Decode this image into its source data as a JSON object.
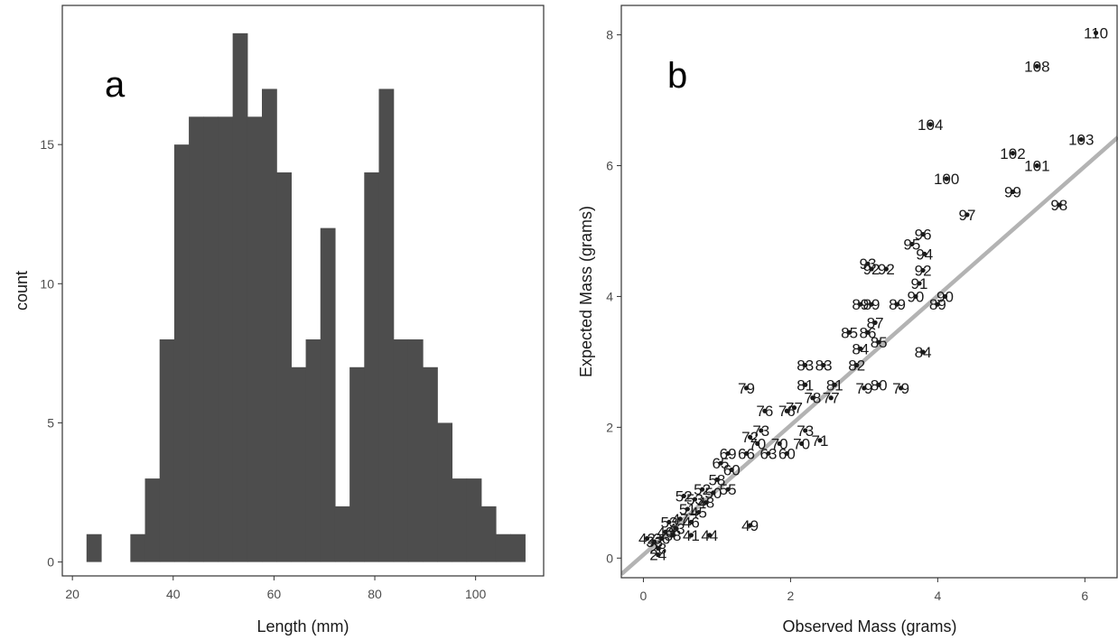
{
  "panels": {
    "a": {
      "letter": "a"
    },
    "b": {
      "letter": "b"
    }
  },
  "colors": {
    "bars": "#4d4d4d",
    "points": "#1a1a1a",
    "line": "#b3b3b3",
    "frame": "#333333"
  },
  "chart_data": [
    {
      "type": "bar",
      "subtype": "histogram",
      "panel_label": "a",
      "xlabel": "Length (mm)",
      "ylabel": "count",
      "xlim": [
        18,
        113.5
      ],
      "ylim": [
        -0.5,
        20
      ],
      "xticks": [
        20,
        40,
        60,
        80,
        100
      ],
      "yticks": [
        0,
        5,
        10,
        15
      ],
      "bin_width": 2.9,
      "bins": [
        {
          "x0": 22.8,
          "count": 1
        },
        {
          "x0": 25.7,
          "count": 0
        },
        {
          "x0": 28.6,
          "count": 0
        },
        {
          "x0": 31.5,
          "count": 1
        },
        {
          "x0": 34.4,
          "count": 3
        },
        {
          "x0": 37.3,
          "count": 8
        },
        {
          "x0": 40.2,
          "count": 15
        },
        {
          "x0": 43.1,
          "count": 16
        },
        {
          "x0": 46.0,
          "count": 16
        },
        {
          "x0": 48.9,
          "count": 16
        },
        {
          "x0": 51.8,
          "count": 19
        },
        {
          "x0": 54.7,
          "count": 16
        },
        {
          "x0": 57.6,
          "count": 17
        },
        {
          "x0": 60.5,
          "count": 14
        },
        {
          "x0": 63.4,
          "count": 7
        },
        {
          "x0": 66.3,
          "count": 8
        },
        {
          "x0": 69.2,
          "count": 12
        },
        {
          "x0": 72.1,
          "count": 2
        },
        {
          "x0": 75.0,
          "count": 7
        },
        {
          "x0": 77.9,
          "count": 14
        },
        {
          "x0": 80.8,
          "count": 17
        },
        {
          "x0": 83.7,
          "count": 8
        },
        {
          "x0": 86.6,
          "count": 8
        },
        {
          "x0": 89.5,
          "count": 7
        },
        {
          "x0": 92.4,
          "count": 5
        },
        {
          "x0": 95.3,
          "count": 3
        },
        {
          "x0": 98.2,
          "count": 3
        },
        {
          "x0": 101.1,
          "count": 2
        },
        {
          "x0": 104.0,
          "count": 1
        },
        {
          "x0": 106.9,
          "count": 1
        }
      ],
      "grid": false
    },
    {
      "type": "scatter",
      "panel_label": "b",
      "xlabel": "Observed Mass (grams)",
      "ylabel": "Expected Mass (grams)",
      "xlim": [
        -0.3,
        6.45
      ],
      "ylim": [
        -0.3,
        8.45
      ],
      "xticks": [
        0,
        2,
        4,
        6
      ],
      "yticks": [
        0,
        2,
        4,
        6,
        8
      ],
      "grid": false,
      "reference_line": {
        "type": "fit",
        "slope": 0.99,
        "intercept": 0.05
      },
      "points": [
        {
          "x": 6.15,
          "y": 8.03,
          "label": "110"
        },
        {
          "x": 5.35,
          "y": 7.52,
          "label": "108"
        },
        {
          "x": 3.9,
          "y": 6.63,
          "label": "104"
        },
        {
          "x": 5.95,
          "y": 6.4,
          "label": "103"
        },
        {
          "x": 5.02,
          "y": 6.19,
          "label": "102"
        },
        {
          "x": 5.35,
          "y": 6.0,
          "label": "101"
        },
        {
          "x": 4.12,
          "y": 5.8,
          "label": "100"
        },
        {
          "x": 5.02,
          "y": 5.6,
          "label": "99"
        },
        {
          "x": 5.65,
          "y": 5.4,
          "label": "98"
        },
        {
          "x": 4.4,
          "y": 5.25,
          "label": "97"
        },
        {
          "x": 3.8,
          "y": 4.95,
          "label": "96"
        },
        {
          "x": 3.65,
          "y": 4.8,
          "label": "95"
        },
        {
          "x": 3.82,
          "y": 4.65,
          "label": "94"
        },
        {
          "x": 3.05,
          "y": 4.5,
          "label": "93"
        },
        {
          "x": 3.1,
          "y": 4.42,
          "label": "92"
        },
        {
          "x": 3.3,
          "y": 4.42,
          "label": "92"
        },
        {
          "x": 3.8,
          "y": 4.4,
          "label": "92"
        },
        {
          "x": 3.75,
          "y": 4.2,
          "label": "91"
        },
        {
          "x": 3.7,
          "y": 4.0,
          "label": "90"
        },
        {
          "x": 4.1,
          "y": 4.0,
          "label": "90"
        },
        {
          "x": 2.95,
          "y": 3.88,
          "label": "89"
        },
        {
          "x": 3.1,
          "y": 3.88,
          "label": "89"
        },
        {
          "x": 3.45,
          "y": 3.88,
          "label": "89"
        },
        {
          "x": 4.0,
          "y": 3.88,
          "label": "89"
        },
        {
          "x": 3.15,
          "y": 3.6,
          "label": "87"
        },
        {
          "x": 3.05,
          "y": 3.45,
          "label": "86"
        },
        {
          "x": 2.8,
          "y": 3.45,
          "label": "85"
        },
        {
          "x": 3.2,
          "y": 3.3,
          "label": "85"
        },
        {
          "x": 2.95,
          "y": 3.2,
          "label": "84"
        },
        {
          "x": 3.8,
          "y": 3.15,
          "label": "84"
        },
        {
          "x": 2.2,
          "y": 2.95,
          "label": "83"
        },
        {
          "x": 2.45,
          "y": 2.95,
          "label": "83"
        },
        {
          "x": 2.9,
          "y": 2.95,
          "label": "82"
        },
        {
          "x": 2.2,
          "y": 2.65,
          "label": "81"
        },
        {
          "x": 2.6,
          "y": 2.65,
          "label": "81"
        },
        {
          "x": 3.2,
          "y": 2.65,
          "label": "80"
        },
        {
          "x": 3.5,
          "y": 2.6,
          "label": "79"
        },
        {
          "x": 1.4,
          "y": 2.6,
          "label": "79"
        },
        {
          "x": 3.0,
          "y": 2.6,
          "label": "79"
        },
        {
          "x": 2.3,
          "y": 2.45,
          "label": "78"
        },
        {
          "x": 2.55,
          "y": 2.45,
          "label": "77"
        },
        {
          "x": 2.05,
          "y": 2.3,
          "label": "77"
        },
        {
          "x": 1.65,
          "y": 2.25,
          "label": "76"
        },
        {
          "x": 1.95,
          "y": 2.25,
          "label": "76"
        },
        {
          "x": 1.6,
          "y": 1.95,
          "label": "73"
        },
        {
          "x": 2.2,
          "y": 1.95,
          "label": "73"
        },
        {
          "x": 1.45,
          "y": 1.85,
          "label": "72"
        },
        {
          "x": 2.4,
          "y": 1.8,
          "label": "71"
        },
        {
          "x": 1.55,
          "y": 1.75,
          "label": "70"
        },
        {
          "x": 1.85,
          "y": 1.75,
          "label": "70"
        },
        {
          "x": 2.15,
          "y": 1.75,
          "label": "70"
        },
        {
          "x": 1.15,
          "y": 1.6,
          "label": "69"
        },
        {
          "x": 1.4,
          "y": 1.6,
          "label": "66"
        },
        {
          "x": 1.7,
          "y": 1.6,
          "label": "63"
        },
        {
          "x": 1.95,
          "y": 1.6,
          "label": "60"
        },
        {
          "x": 1.05,
          "y": 1.45,
          "label": "65"
        },
        {
          "x": 1.2,
          "y": 1.35,
          "label": "60"
        },
        {
          "x": 1.0,
          "y": 1.2,
          "label": "58"
        },
        {
          "x": 1.15,
          "y": 1.05,
          "label": "55"
        },
        {
          "x": 0.95,
          "y": 1.0,
          "label": "50"
        },
        {
          "x": 0.8,
          "y": 1.05,
          "label": "52"
        },
        {
          "x": 0.7,
          "y": 0.9,
          "label": "53"
        },
        {
          "x": 0.85,
          "y": 0.85,
          "label": "48"
        },
        {
          "x": 0.6,
          "y": 0.75,
          "label": "51"
        },
        {
          "x": 0.75,
          "y": 0.7,
          "label": "45"
        },
        {
          "x": 0.5,
          "y": 0.6,
          "label": "47"
        },
        {
          "x": 0.65,
          "y": 0.55,
          "label": "46"
        },
        {
          "x": 0.45,
          "y": 0.45,
          "label": "43"
        },
        {
          "x": 0.35,
          "y": 0.55,
          "label": "53"
        },
        {
          "x": 0.3,
          "y": 0.4,
          "label": "40"
        },
        {
          "x": 0.4,
          "y": 0.35,
          "label": "38"
        },
        {
          "x": 0.25,
          "y": 0.3,
          "label": "36"
        },
        {
          "x": 0.15,
          "y": 0.25,
          "label": "33"
        },
        {
          "x": 0.05,
          "y": 0.3,
          "label": "42"
        },
        {
          "x": 0.2,
          "y": 0.15,
          "label": "28"
        },
        {
          "x": 0.2,
          "y": 0.05,
          "label": "24"
        },
        {
          "x": 0.9,
          "y": 0.35,
          "label": "44"
        },
        {
          "x": 0.65,
          "y": 0.35,
          "label": "41"
        },
        {
          "x": 1.45,
          "y": 0.5,
          "label": "49"
        },
        {
          "x": 0.55,
          "y": 0.95,
          "label": "52"
        }
      ]
    }
  ]
}
